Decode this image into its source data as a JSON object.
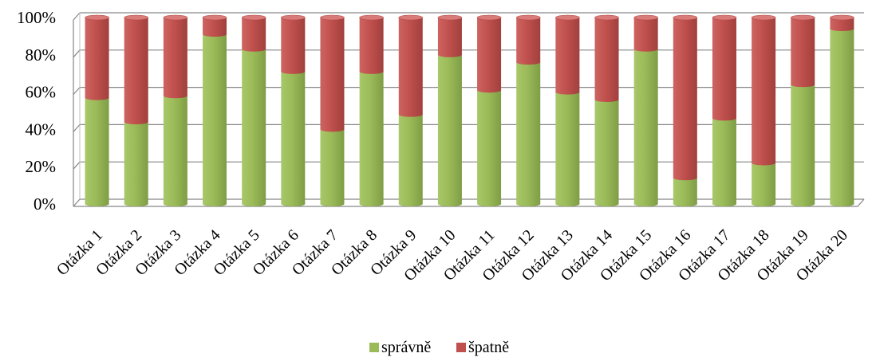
{
  "chart_data": {
    "type": "bar",
    "stacked": true,
    "percent": true,
    "categories": [
      "Otázka 1",
      "Otázka 2",
      "Otázka 3",
      "Otázka 4",
      "Otázka 5",
      "Otázka 6",
      "Otázka 7",
      "Otázka 8",
      "Otázka 9",
      "Otázka 10",
      "Otázka 11",
      "Otázka 12",
      "Otázka 13",
      "Otázka 14",
      "Otázka 15",
      "Otázka 16",
      "Otázka 17",
      "Otázka 18",
      "Otázka 19",
      "Otázka 20"
    ],
    "series": [
      {
        "name": "správně",
        "color": "#9bbb59",
        "values": [
          57,
          44,
          58,
          91,
          83,
          71,
          40,
          71,
          48,
          80,
          61,
          76,
          60,
          56,
          83,
          14,
          46,
          22,
          64,
          94
        ]
      },
      {
        "name": "špatně",
        "color": "#c0504d",
        "values": [
          43,
          56,
          42,
          9,
          17,
          29,
          60,
          29,
          52,
          20,
          39,
          24,
          40,
          44,
          17,
          86,
          54,
          78,
          36,
          6
        ]
      }
    ],
    "yticks": [
      "0%",
      "20%",
      "40%",
      "60%",
      "80%",
      "100%"
    ],
    "ylim": [
      0,
      100
    ],
    "grid": true,
    "legend": "bottom"
  }
}
